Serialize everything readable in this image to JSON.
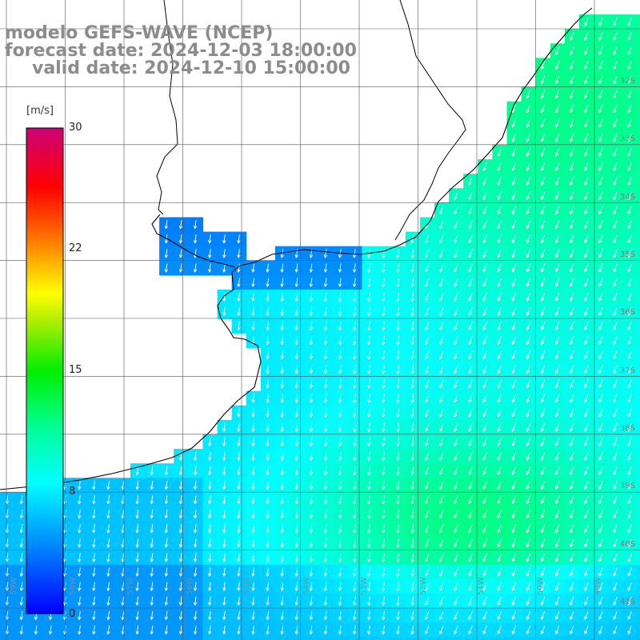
{
  "title": {
    "line1": "modelo GEFS-WAVE (NCEP)",
    "line2": "forecast date: 2024-12-03 18:00:00",
    "line3": "valid date: 2024-12-10 15:00:00"
  },
  "colorbar": {
    "unit": "[m/s]",
    "ticks": [
      "30",
      "22",
      "15",
      "8",
      "0"
    ],
    "tick_values": [
      30,
      22,
      15,
      8,
      0
    ],
    "range": [
      0,
      30
    ],
    "colors": [
      "#0000ff",
      "#00aaff",
      "#00ffff",
      "#00ff00",
      "#ffff00",
      "#ff8800",
      "#ff0000",
      "#cc0066"
    ]
  },
  "lat_labels": [
    "32S",
    "33S",
    "34S",
    "35S",
    "36S",
    "37S",
    "38S",
    "39S",
    "40S",
    "41S"
  ],
  "lon_labels": [
    "59W",
    "58W",
    "57W",
    "56W",
    "55W",
    "54W",
    "53W",
    "52W",
    "51W",
    "50W",
    "49W",
    "48W"
  ],
  "map": {
    "land_color": "#ffffff",
    "coast_color": "#000000",
    "grid_color": "#555555",
    "arrow_color": "#ffffff",
    "wind_direction": "from north-northeast",
    "wind_speed_range_ms": [
      4,
      13
    ]
  }
}
